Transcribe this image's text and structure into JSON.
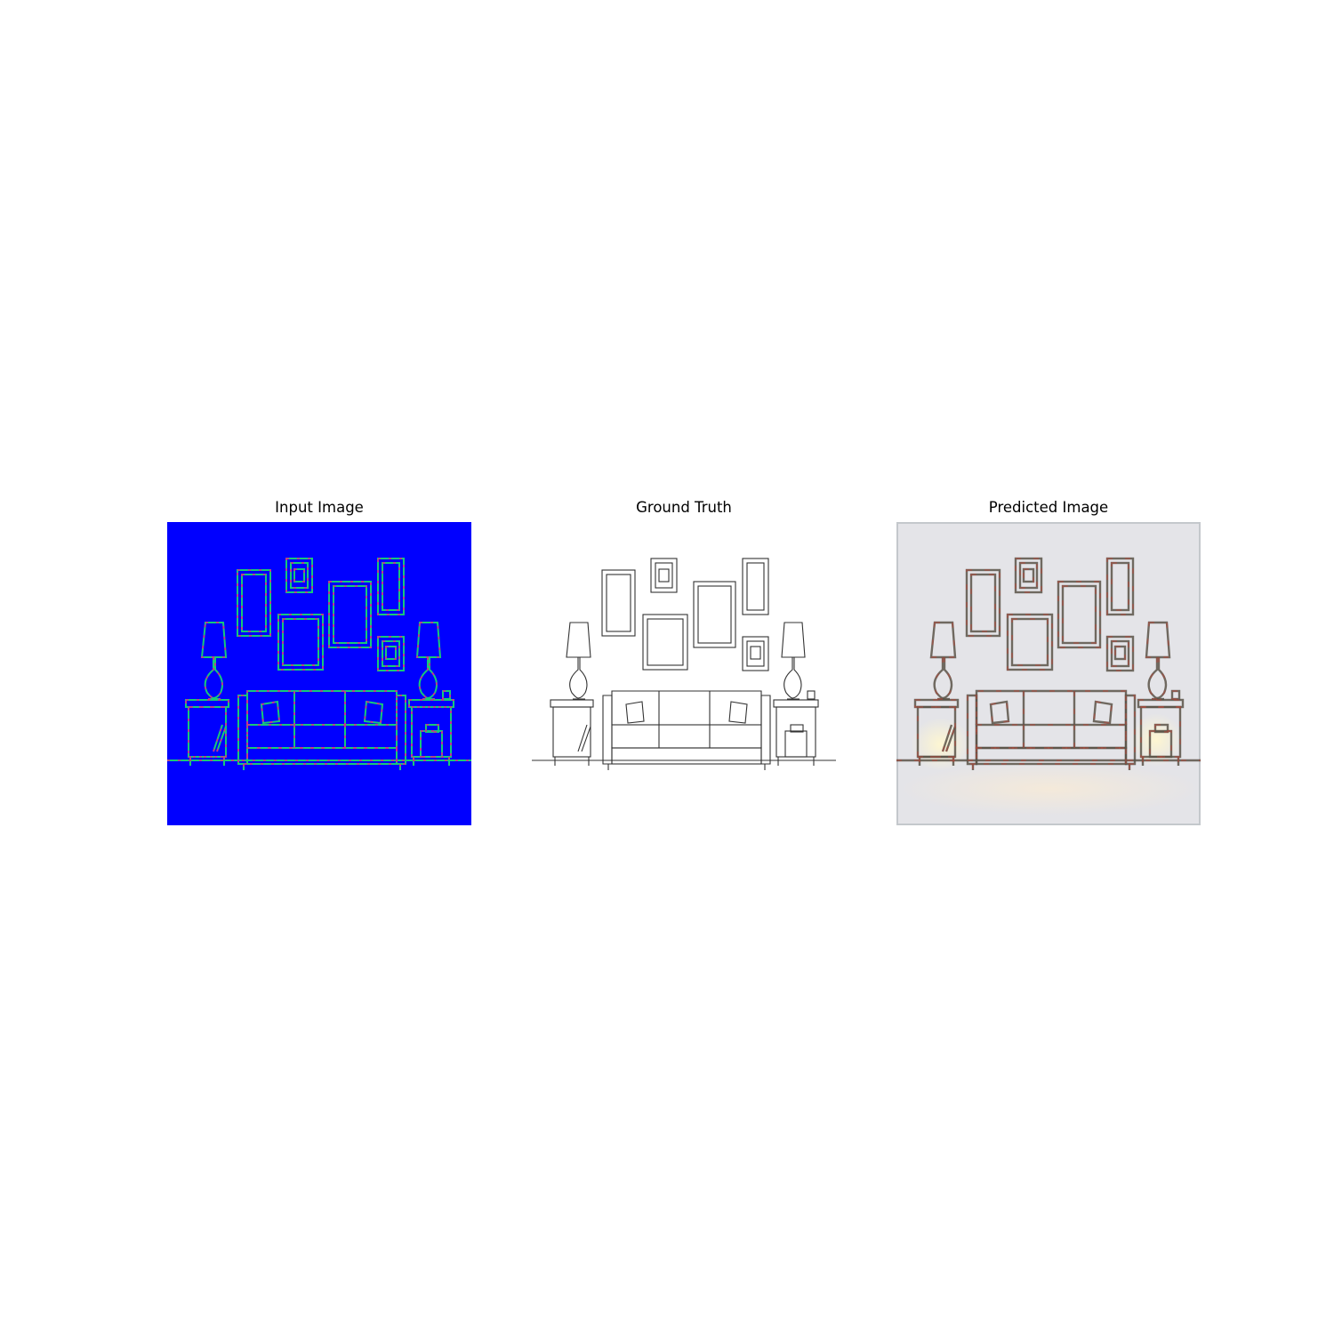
{
  "panels": [
    {
      "title": "Input Image"
    },
    {
      "title": "Ground Truth"
    },
    {
      "title": "Predicted Image"
    }
  ],
  "colors": {
    "page_background": "#ffffff",
    "input_background": "#0000ff",
    "input_stroke_green": "#18c878",
    "input_stroke_magenta": "#e0208c",
    "ground_truth_background": "#ffffff",
    "ground_truth_stroke": "#333333",
    "predicted_background": "#e4e4e8",
    "predicted_stroke": "#5a5448"
  }
}
